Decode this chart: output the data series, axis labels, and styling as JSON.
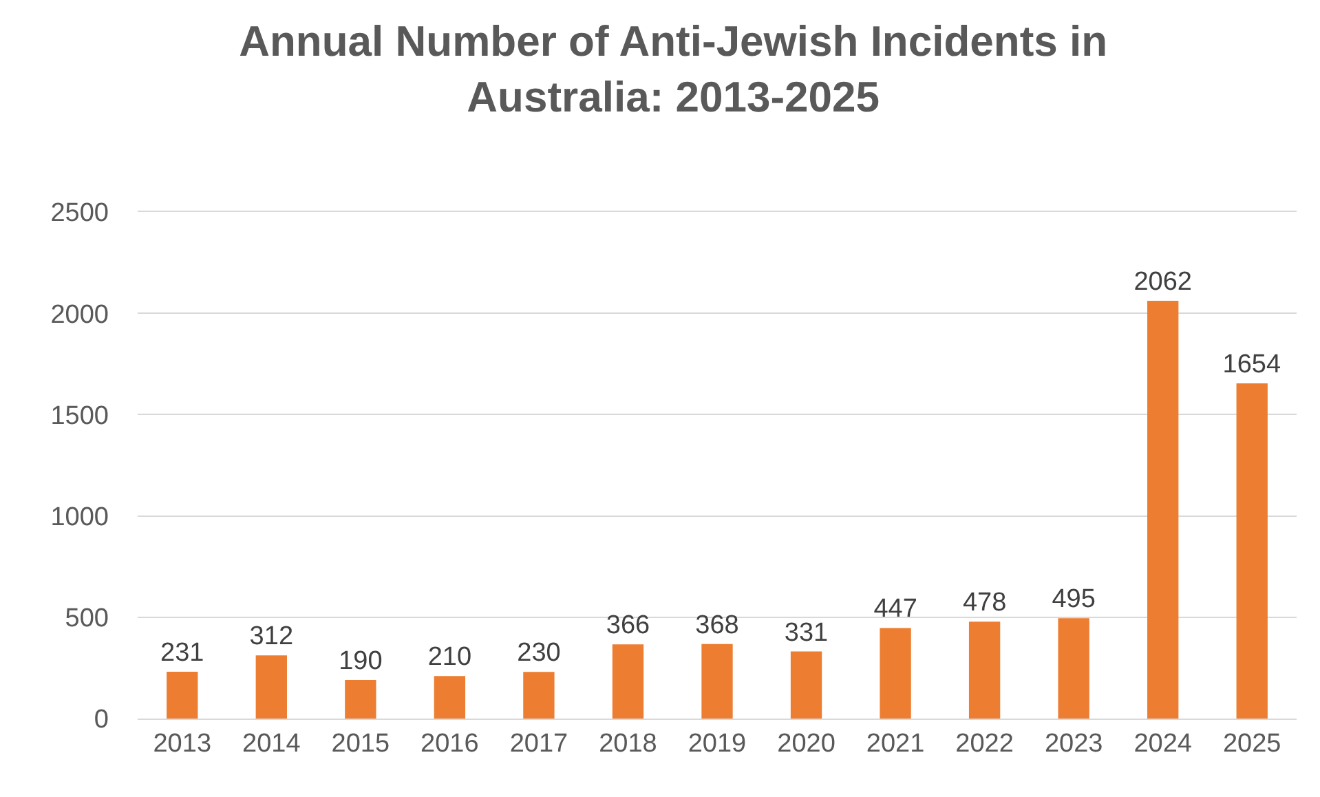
{
  "chart_data": {
    "type": "bar",
    "title": "Annual Number of Anti-Jewish Incidents in Australia: 2013-2025",
    "categories": [
      "2013",
      "2014",
      "2015",
      "2016",
      "2017",
      "2018",
      "2019",
      "2020",
      "2021",
      "2022",
      "2023",
      "2024",
      "2025"
    ],
    "values": [
      231,
      312,
      190,
      210,
      230,
      366,
      368,
      331,
      447,
      478,
      495,
      2062,
      1654
    ],
    "color": "#ed7d31",
    "ylim": [
      0,
      2500
    ],
    "yticks": [
      0,
      500,
      1000,
      1500,
      2000,
      2500
    ],
    "grid": "y",
    "data_labels": true,
    "legend": false
  }
}
